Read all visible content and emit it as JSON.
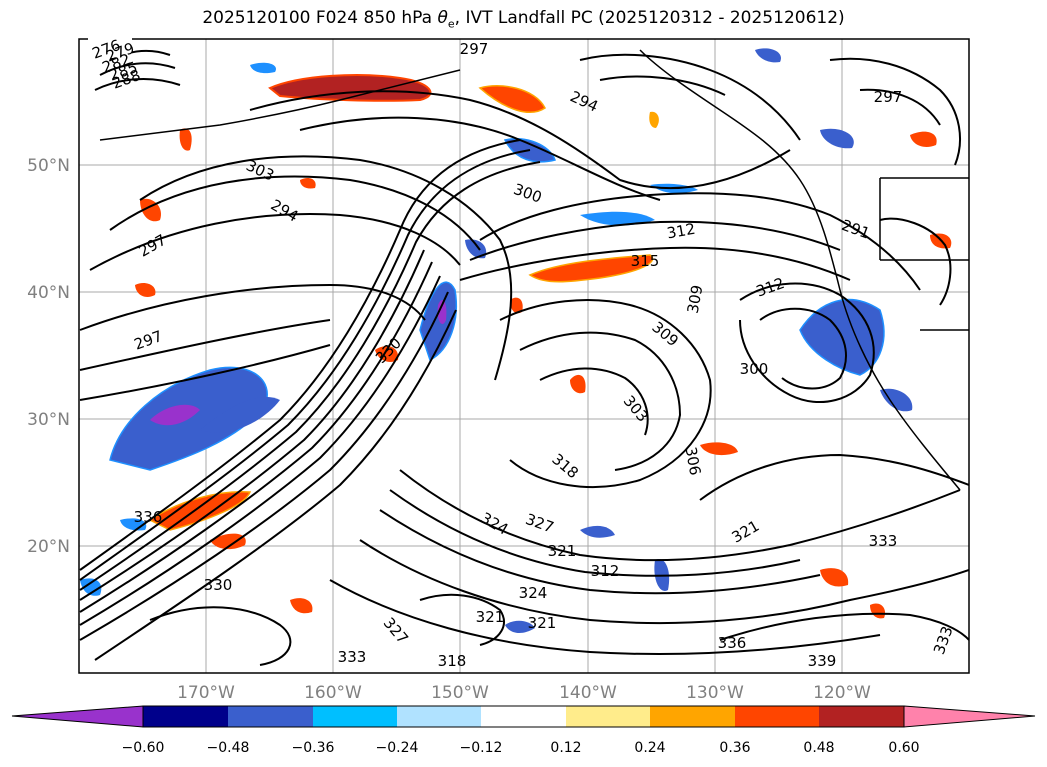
{
  "title": {
    "prefix": "2025120100 F024 850 hPa ",
    "theta": "θ",
    "sub": "e",
    "suffix": ", IVT Landfall PC (2025120312 - 2025120612)"
  },
  "axes": {
    "lon_ticks": [
      "170°W",
      "160°W",
      "150°W",
      "140°W",
      "130°W",
      "120°W"
    ],
    "lat_ticks": [
      "50°N",
      "40°N",
      "30°N",
      "20°N"
    ]
  },
  "contour_labels": [
    "276",
    "279",
    "282",
    "285",
    "288",
    "297",
    "294",
    "303",
    "300",
    "312",
    "315",
    "309",
    "297",
    "294",
    "297",
    "303",
    "306",
    "309",
    "318",
    "321",
    "324",
    "327",
    "330",
    "333",
    "336",
    "339",
    "336",
    "333",
    "321",
    "327",
    "312",
    "324",
    "330",
    "318",
    "321",
    "321",
    "333",
    "312",
    "300",
    "297",
    "291"
  ],
  "colorbar": {
    "ticks": [
      "−0.60",
      "−0.48",
      "−0.36",
      "−0.24",
      "−0.12",
      "0.12",
      "0.24",
      "0.36",
      "0.48",
      "0.60"
    ],
    "colors": [
      "#9932cc",
      "#00008b",
      "#3a5fcd",
      "#00bfff",
      "#b0e2ff",
      "#ffffff",
      "#ffec8b",
      "#ffa500",
      "#ff4500",
      "#b22222",
      "#ff82ab"
    ]
  },
  "map_colors": {
    "neg_strong": "#3a5fcd",
    "neg_mid": "#1e90ff",
    "neg_light": "#87ceeb",
    "neg_deep": "#9932cc",
    "pos_light": "#ffec8b",
    "pos_mid": "#ffa500",
    "pos_strong": "#ff4500",
    "pos_deep": "#b22222",
    "grid": "#a9a9a9",
    "contour": "#000000"
  }
}
